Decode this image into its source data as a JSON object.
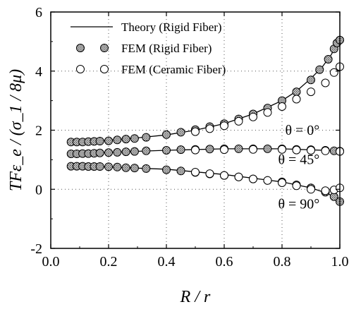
{
  "chart_data": {
    "type": "scatter",
    "title": "",
    "xlabel": "R / r",
    "ylabel": "TFε_e / (σ_1 / 8μ)",
    "xlim": [
      0.0,
      1.0
    ],
    "ylim": [
      -2,
      6
    ],
    "xticks": [
      0.0,
      0.2,
      0.4,
      0.6,
      0.8,
      1.0
    ],
    "xtick_labels": [
      "0.0",
      "0.2",
      "0.4",
      "0.6",
      "0.8",
      "1.0"
    ],
    "yticks": [
      -2,
      0,
      2,
      4,
      6
    ],
    "ytick_labels": [
      "-2",
      "0",
      "2",
      "4",
      "6"
    ],
    "grid": "dotted",
    "legend_position": "top-left",
    "legend": [
      {
        "label": "Theory (Rigid Fiber)",
        "marker": "line"
      },
      {
        "label": "FEM (Rigid  Fiber)",
        "marker": "filled-circle"
      },
      {
        "label": "FEM (Ceramic  Fiber)",
        "marker": "open-circle"
      }
    ],
    "annotations": [
      {
        "text": "θ = 0°",
        "x": 0.93,
        "y": 1.85
      },
      {
        "text": "θ = 45°",
        "x": 0.93,
        "y": 0.85
      },
      {
        "text": "θ = 90°",
        "x": 0.93,
        "y": -0.65
      }
    ],
    "series": [
      {
        "name": "Theory (Rigid Fiber)",
        "kind": "line",
        "curves": [
          {
            "theta": "0°",
            "x": [
              0.06,
              0.1,
              0.2,
              0.3,
              0.4,
              0.5,
              0.6,
              0.7,
              0.8,
              0.85,
              0.9,
              0.94,
              0.97,
              0.99,
              1.0
            ],
            "y": [
              1.6,
              1.62,
              1.66,
              1.74,
              1.84,
              2.0,
              2.22,
              2.55,
              3.0,
              3.32,
              3.75,
              4.15,
              4.55,
              4.9,
              5.05
            ]
          },
          {
            "theta": "45°",
            "x": [
              0.06,
              0.2,
              0.4,
              0.6,
              0.8,
              1.0
            ],
            "y": [
              1.2,
              1.25,
              1.32,
              1.37,
              1.37,
              1.3
            ]
          },
          {
            "theta": "90°",
            "x": [
              0.06,
              0.2,
              0.4,
              0.6,
              0.8,
              0.9,
              0.96,
              1.0
            ],
            "y": [
              0.78,
              0.75,
              0.68,
              0.5,
              0.25,
              0.05,
              -0.15,
              -0.42
            ]
          }
        ]
      },
      {
        "name": "FEM (Rigid  Fiber)",
        "kind": "filled-circle",
        "curves": [
          {
            "theta": "0°",
            "x": [
              0.07,
              0.09,
              0.11,
              0.13,
              0.15,
              0.17,
              0.2,
              0.23,
              0.26,
              0.29,
              0.33,
              0.4,
              0.45,
              0.5,
              0.55,
              0.6,
              0.65,
              0.7,
              0.75,
              0.8,
              0.85,
              0.9,
              0.93,
              0.96,
              0.98,
              0.99,
              1.0
            ],
            "y": [
              1.6,
              1.6,
              1.6,
              1.61,
              1.62,
              1.63,
              1.64,
              1.67,
              1.7,
              1.72,
              1.76,
              1.85,
              1.93,
              2.02,
              2.12,
              2.22,
              2.38,
              2.55,
              2.75,
              3.0,
              3.3,
              3.7,
              4.05,
              4.4,
              4.75,
              4.95,
              5.05
            ]
          },
          {
            "theta": "45°",
            "x": [
              0.07,
              0.09,
              0.11,
              0.13,
              0.15,
              0.17,
              0.2,
              0.23,
              0.26,
              0.29,
              0.33,
              0.4,
              0.45,
              0.5,
              0.55,
              0.6,
              0.65,
              0.7,
              0.75,
              0.8,
              0.85,
              0.9,
              0.95,
              0.98,
              1.0
            ],
            "y": [
              1.2,
              1.2,
              1.21,
              1.21,
              1.22,
              1.23,
              1.24,
              1.25,
              1.27,
              1.28,
              1.3,
              1.32,
              1.34,
              1.35,
              1.36,
              1.37,
              1.37,
              1.37,
              1.37,
              1.37,
              1.35,
              1.34,
              1.32,
              1.3,
              1.29
            ]
          },
          {
            "theta": "90°",
            "x": [
              0.07,
              0.09,
              0.11,
              0.13,
              0.15,
              0.17,
              0.2,
              0.23,
              0.26,
              0.29,
              0.33,
              0.4,
              0.45,
              0.5,
              0.55,
              0.6,
              0.65,
              0.7,
              0.75,
              0.8,
              0.85,
              0.9,
              0.95,
              0.98,
              1.0
            ],
            "y": [
              0.78,
              0.78,
              0.78,
              0.77,
              0.77,
              0.77,
              0.76,
              0.75,
              0.73,
              0.72,
              0.7,
              0.66,
              0.62,
              0.57,
              0.52,
              0.47,
              0.42,
              0.35,
              0.3,
              0.25,
              0.15,
              0.05,
              -0.1,
              -0.25,
              -0.42
            ]
          }
        ]
      },
      {
        "name": "FEM (Ceramic  Fiber)",
        "kind": "open-circle",
        "curves": [
          {
            "theta": "0°",
            "x": [
              0.5,
              0.55,
              0.6,
              0.65,
              0.7,
              0.75,
              0.8,
              0.85,
              0.9,
              0.95,
              0.98,
              1.0
            ],
            "y": [
              1.95,
              2.05,
              2.15,
              2.3,
              2.45,
              2.6,
              2.8,
              3.05,
              3.3,
              3.6,
              3.95,
              4.15
            ]
          },
          {
            "theta": "45°",
            "x": [
              0.5,
              0.6,
              0.7,
              0.8,
              0.85,
              0.9,
              0.95,
              1.0
            ],
            "y": [
              1.33,
              1.34,
              1.35,
              1.35,
              1.33,
              1.32,
              1.3,
              1.28
            ]
          },
          {
            "theta": "90°",
            "x": [
              0.5,
              0.55,
              0.6,
              0.65,
              0.7,
              0.75,
              0.8,
              0.85,
              0.9,
              0.95,
              0.98,
              1.0
            ],
            "y": [
              0.58,
              0.53,
              0.47,
              0.42,
              0.35,
              0.3,
              0.22,
              0.12,
              0.0,
              -0.05,
              -0.02,
              0.05
            ]
          }
        ]
      }
    ]
  }
}
